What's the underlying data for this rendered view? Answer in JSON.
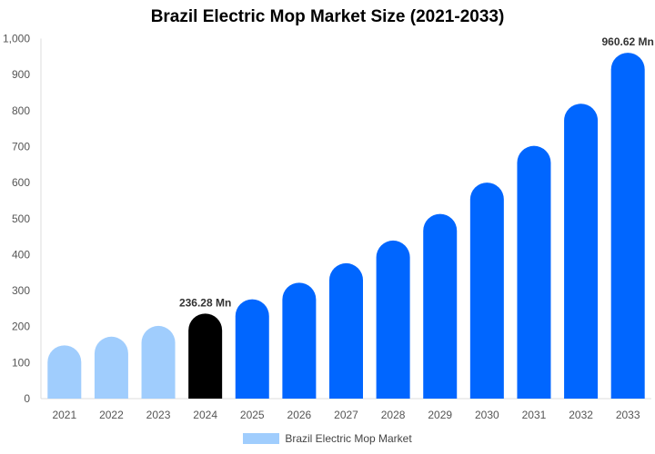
{
  "chart_data": {
    "type": "bar",
    "title": "Brazil Electric Mop Market Size (2021-2033)",
    "categories": [
      "2021",
      "2022",
      "2023",
      "2024",
      "2025",
      "2026",
      "2027",
      "2028",
      "2029",
      "2030",
      "2031",
      "2032",
      "2033"
    ],
    "series": [
      {
        "name": "Brazil Electric Mop Market",
        "values": [
          148,
          172,
          202,
          236.28,
          276,
          322,
          376,
          439,
          513,
          600,
          702,
          819,
          960.62
        ]
      }
    ],
    "data_labels": {
      "3": "236.28 Mn",
      "12": "960.62 Mn"
    },
    "ylim": [
      0,
      1000
    ],
    "yticks": [
      "0",
      "100",
      "200",
      "300",
      "400",
      "500",
      "600",
      "700",
      "800",
      "900",
      "1,000"
    ],
    "xlabel": "",
    "ylabel": "",
    "grid": false,
    "legend": "bottom",
    "colors": {
      "historical": "#a0cdfd",
      "base_year": "#000000",
      "forecast": "#0066ff"
    }
  }
}
